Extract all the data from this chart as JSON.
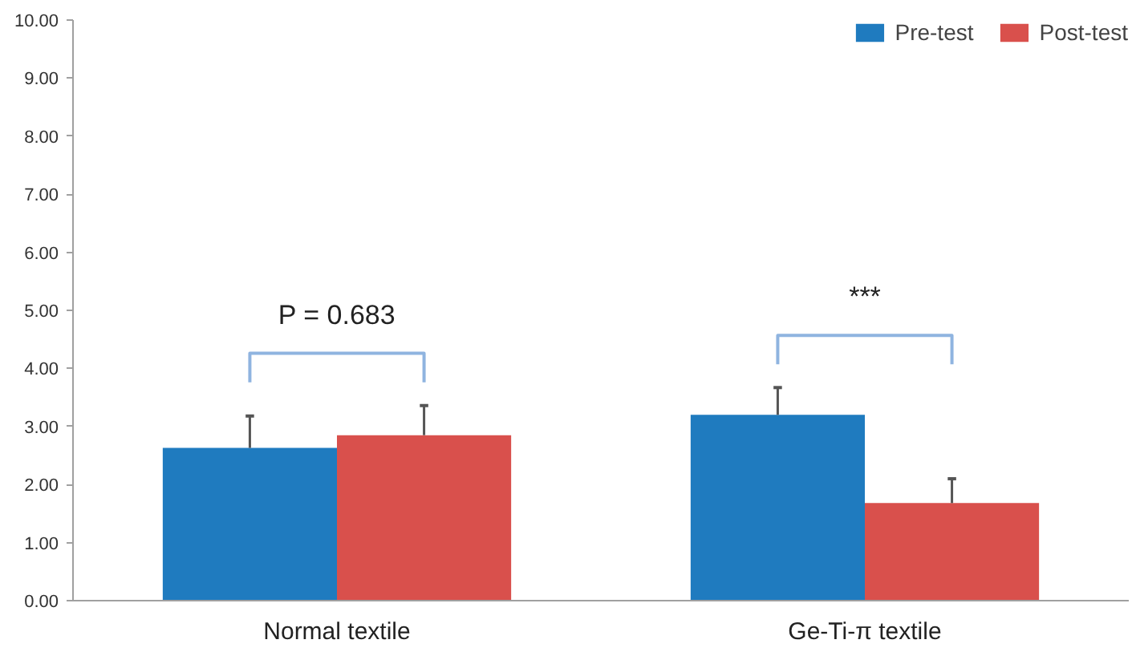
{
  "chart_data": {
    "type": "bar",
    "categories": [
      "Normal textile",
      "Ge-Ti-π textile"
    ],
    "series": [
      {
        "name": "Pre-test",
        "color": "#1f7bbf",
        "values": [
          2.63,
          3.2
        ],
        "errors": [
          [
            2.63,
            3.18
          ],
          [
            3.2,
            3.67
          ]
        ]
      },
      {
        "name": "Post-test",
        "color": "#d9504c",
        "values": [
          2.85,
          1.68
        ],
        "errors": [
          [
            2.85,
            3.36
          ],
          [
            1.68,
            2.1
          ]
        ]
      }
    ],
    "ylim": [
      0,
      10
    ],
    "yticks": [
      {
        "value": 0,
        "label": "0.00"
      },
      {
        "value": 1,
        "label": "1.00"
      },
      {
        "value": 2,
        "label": "2.00"
      },
      {
        "value": 3,
        "label": "3.00"
      },
      {
        "value": 4,
        "label": "4.00"
      },
      {
        "value": 5,
        "label": "5.00"
      },
      {
        "value": 6,
        "label": "6.00"
      },
      {
        "value": 7,
        "label": "7.00"
      },
      {
        "value": 8,
        "label": "8.00"
      },
      {
        "value": 9,
        "label": "9.00"
      },
      {
        "value": 10,
        "label": "10.00"
      }
    ],
    "annotations": [
      "P = 0.683",
      "***"
    ],
    "grid": false,
    "legend": "top right"
  }
}
